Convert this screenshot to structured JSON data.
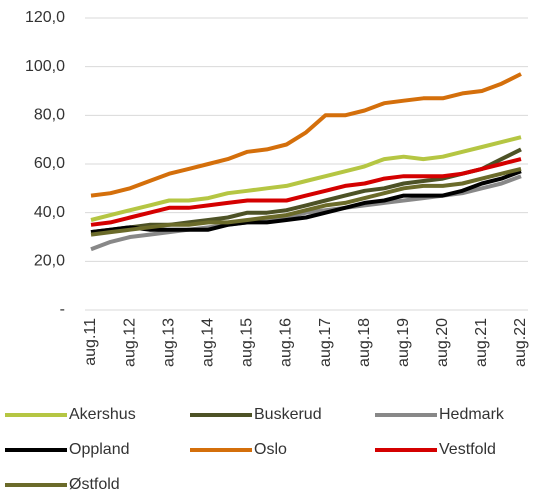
{
  "chart_data": {
    "type": "line",
    "categories": [
      "aug.11",
      null,
      "aug.12",
      null,
      "aug.13",
      null,
      "aug.14",
      null,
      "aug.15",
      null,
      "aug.16",
      null,
      "aug.17",
      null,
      "aug.18",
      null,
      "aug.19",
      null,
      "aug.20",
      null,
      "aug.21",
      null,
      "aug.22"
    ],
    "ylim": [
      0,
      120
    ],
    "yticks": [
      {
        "value": 0,
        "label": "-"
      },
      {
        "value": 20,
        "label": "20,0"
      },
      {
        "value": 40,
        "label": "40,0"
      },
      {
        "value": 60,
        "label": "60,0"
      },
      {
        "value": 80,
        "label": "80,0"
      },
      {
        "value": 100,
        "label": "100,0"
      },
      {
        "value": 120,
        "label": "120,0"
      }
    ],
    "grid": true,
    "series": [
      {
        "name": "Akershus",
        "color": "#b5c643",
        "values": [
          37,
          39,
          41,
          43,
          45,
          45,
          46,
          48,
          49,
          50,
          51,
          53,
          55,
          57,
          59,
          62,
          63,
          62,
          63,
          65,
          67,
          69,
          71
        ]
      },
      {
        "name": "Buskerud",
        "color": "#4d5226",
        "values": [
          32,
          33,
          34,
          35,
          35,
          36,
          37,
          38,
          40,
          40,
          41,
          43,
          45,
          47,
          49,
          50,
          52,
          53,
          54,
          56,
          58,
          62,
          66
        ]
      },
      {
        "name": "Hedmark",
        "color": "#888888",
        "values": [
          25,
          28,
          30,
          31,
          32,
          33,
          34,
          35,
          36,
          37,
          38,
          40,
          41,
          42,
          43,
          44,
          45,
          46,
          47,
          48,
          50,
          52,
          55
        ]
      },
      {
        "name": "Oppland",
        "color": "#000000",
        "values": [
          32,
          33,
          34,
          33,
          33,
          33,
          33,
          35,
          36,
          36,
          37,
          38,
          40,
          42,
          44,
          45,
          47,
          47,
          47,
          49,
          52,
          54,
          57
        ]
      },
      {
        "name": "Oslo",
        "color": "#d46f0b",
        "values": [
          47,
          48,
          50,
          53,
          56,
          58,
          60,
          62,
          65,
          66,
          68,
          73,
          80,
          80,
          82,
          85,
          86,
          87,
          87,
          89,
          90,
          93,
          97
        ]
      },
      {
        "name": "Vestfold",
        "color": "#d40000",
        "values": [
          35,
          36,
          38,
          40,
          42,
          42,
          43,
          44,
          45,
          45,
          45,
          47,
          49,
          51,
          52,
          54,
          55,
          55,
          55,
          56,
          58,
          60,
          62
        ]
      },
      {
        "name": "Østfold",
        "color": "#6b6b2a",
        "values": [
          31,
          32,
          33,
          34,
          35,
          35,
          36,
          36,
          37,
          38,
          39,
          41,
          43,
          44,
          46,
          48,
          50,
          51,
          51,
          52,
          54,
          56,
          58
        ]
      }
    ]
  }
}
